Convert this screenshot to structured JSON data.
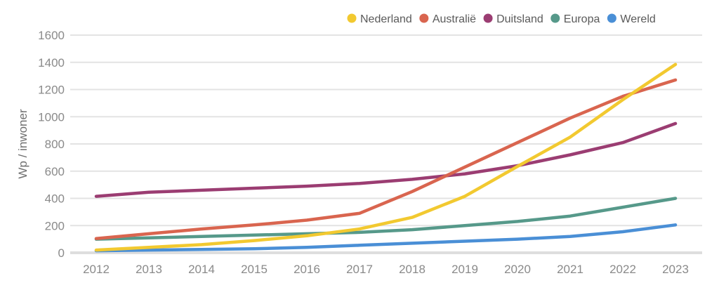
{
  "chart_data": {
    "type": "line",
    "title": "",
    "xlabel": "",
    "ylabel": "Wp / inwoner",
    "ylim": [
      0,
      1600
    ],
    "yticks": [
      0,
      200,
      400,
      600,
      800,
      1000,
      1200,
      1400,
      1600
    ],
    "ytick_labels": [
      "0",
      "200",
      "400",
      "600",
      "800",
      "1000",
      "1200",
      "1400",
      "1600"
    ],
    "x": [
      "2012",
      "2013",
      "2014",
      "2015",
      "2016",
      "2017",
      "2018",
      "2019",
      "2020",
      "2021",
      "2022",
      "2023"
    ],
    "grid": true,
    "legend_position": "top-right",
    "series": [
      {
        "name": "Nederland",
        "color": "#f2c930",
        "values": [
          20,
          40,
          60,
          90,
          125,
          175,
          260,
          415,
          635,
          850,
          1125,
          1385
        ]
      },
      {
        "name": "Australië",
        "color": "#d9654f",
        "values": [
          105,
          140,
          175,
          205,
          240,
          290,
          450,
          630,
          810,
          990,
          1150,
          1270
        ]
      },
      {
        "name": "Duitsland",
        "color": "#9b3d72",
        "values": [
          415,
          445,
          460,
          475,
          490,
          510,
          540,
          580,
          640,
          720,
          810,
          950
        ]
      },
      {
        "name": "Europa",
        "color": "#56998a",
        "values": [
          100,
          110,
          120,
          130,
          140,
          150,
          170,
          200,
          230,
          270,
          335,
          400
        ]
      },
      {
        "name": "Wereld",
        "color": "#4a8fd6",
        "values": [
          15,
          20,
          25,
          30,
          40,
          55,
          70,
          85,
          100,
          120,
          155,
          205
        ]
      }
    ]
  }
}
